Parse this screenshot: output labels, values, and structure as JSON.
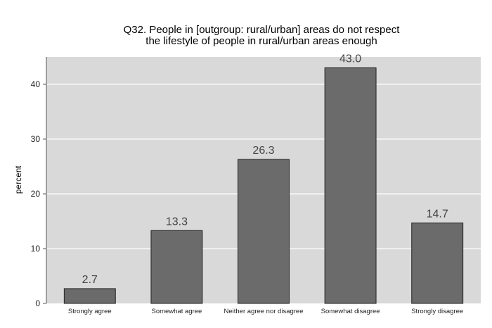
{
  "chart_data": {
    "type": "bar",
    "title": "Q32. People in [outgroup: rural/urban] areas do not respect",
    "subtitle": "the lifestyle of people in rural/urban areas enough",
    "xlabel": "",
    "ylabel": "percent",
    "categories": [
      "Strongly agree",
      "Somewhat agree",
      "Neither agree nor disagree",
      "Somewhat disagree",
      "Strongly disagree"
    ],
    "values": [
      2.7,
      13.3,
      26.3,
      43.0,
      14.7
    ],
    "value_labels": [
      "2.7",
      "13.3",
      "26.3",
      "43.0",
      "14.7"
    ],
    "ylim": [
      0,
      45
    ],
    "yticks": [
      0,
      10,
      20,
      30,
      40
    ],
    "grid": true,
    "colors": {
      "bar": "#6b6b6b",
      "bar_stroke": "#222222",
      "plot_bg": "#d9d9d9",
      "grid": "#ffffff"
    }
  }
}
